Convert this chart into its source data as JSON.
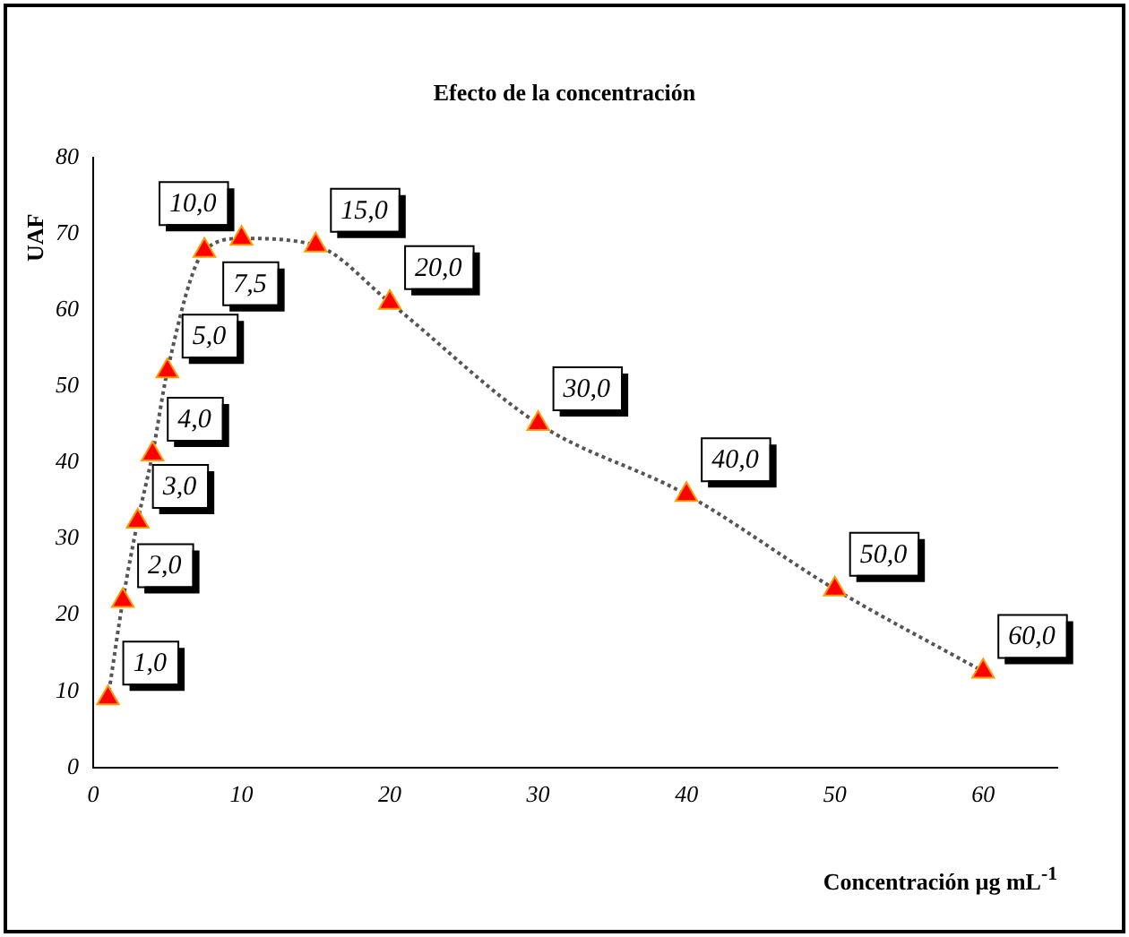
{
  "chart_data": {
    "type": "line",
    "title": "Efecto de la concentración",
    "xlabel": "Concentración µg mL$^{-1}$",
    "ylabel": "UAF",
    "x": [
      1,
      2,
      3,
      4,
      5,
      7.5,
      10,
      15,
      20,
      30,
      40,
      50,
      60
    ],
    "series": [
      {
        "color": "#ff0000",
        "values": [
          9.1,
          21.9,
          32.3,
          41.1,
          52.0,
          67.8,
          69.4,
          68.5,
          61.0,
          45.1,
          35.8,
          23.4,
          12.6
        ]
      }
    ],
    "annotations": [
      {
        "text": "1,0",
        "x": 1,
        "y": 9.1
      },
      {
        "text": "2,0",
        "x": 2,
        "y": 21.9
      },
      {
        "text": "3,0",
        "x": 3,
        "y": 32.3
      },
      {
        "text": "4,0",
        "x": 4,
        "y": 41.1
      },
      {
        "text": "5,0",
        "x": 5,
        "y": 52.0
      },
      {
        "text": "7,5",
        "x": 7.5,
        "y": 67.8
      },
      {
        "text": "10,0",
        "x": 10,
        "y": 69.4
      },
      {
        "text": "15,0",
        "x": 15,
        "y": 68.5
      },
      {
        "text": "20,0",
        "x": 20,
        "y": 61.0
      },
      {
        "text": "30,0",
        "x": 30,
        "y": 45.1
      },
      {
        "text": "40,0",
        "x": 40,
        "y": 35.8
      },
      {
        "text": "50,0",
        "x": 50,
        "y": 23.4
      },
      {
        "text": "60,0",
        "x": 60,
        "y": 12.6
      }
    ],
    "xlim": [
      0,
      65
    ],
    "xticks": [
      0,
      10,
      20,
      30,
      40,
      50,
      60
    ],
    "ylim": [
      0,
      80
    ],
    "yticks": [
      0,
      10,
      20,
      30,
      40,
      50,
      60,
      70,
      80
    ],
    "grid": false,
    "legend": false,
    "marker": "triangle",
    "line_style": "dotted"
  }
}
